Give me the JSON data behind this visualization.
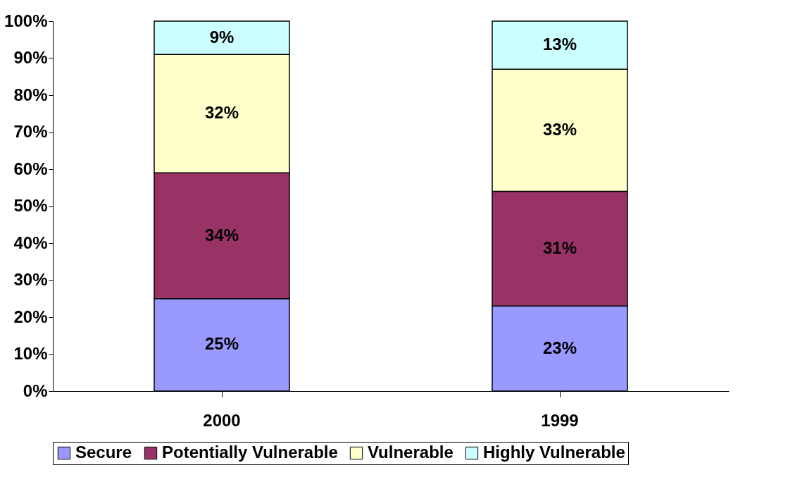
{
  "chart_data": {
    "type": "bar",
    "stacked": true,
    "categories": [
      "2000",
      "1999"
    ],
    "ylim": [
      0,
      100
    ],
    "yticks": [
      {
        "value": 0,
        "label": "0%"
      },
      {
        "value": 10,
        "label": "10%"
      },
      {
        "value": 20,
        "label": "20%"
      },
      {
        "value": 30,
        "label": "30%"
      },
      {
        "value": 40,
        "label": "40%"
      },
      {
        "value": 50,
        "label": "50%"
      },
      {
        "value": 60,
        "label": "60%"
      },
      {
        "value": 70,
        "label": "70%"
      },
      {
        "value": 80,
        "label": "80%"
      },
      {
        "value": 90,
        "label": "90%"
      },
      {
        "value": 100,
        "label": "100%"
      }
    ],
    "grid": false,
    "legend": "bottom",
    "series": [
      {
        "name": "Secure",
        "color": "#9999ff",
        "values": [
          25,
          23
        ],
        "value_labels": [
          "25%",
          "23%"
        ]
      },
      {
        "name": "Potentially Vulnerable",
        "color": "#993366",
        "values": [
          34,
          31
        ],
        "value_labels": [
          "34%",
          "31%"
        ]
      },
      {
        "name": "Vulnerable",
        "color": "#ffffcc",
        "values": [
          32,
          33
        ],
        "value_labels": [
          "32%",
          "33%"
        ]
      },
      {
        "name": "Highly Vulnerable",
        "color": "#ccffff",
        "values": [
          9,
          13
        ],
        "value_labels": [
          "9%",
          "13%"
        ]
      }
    ]
  }
}
